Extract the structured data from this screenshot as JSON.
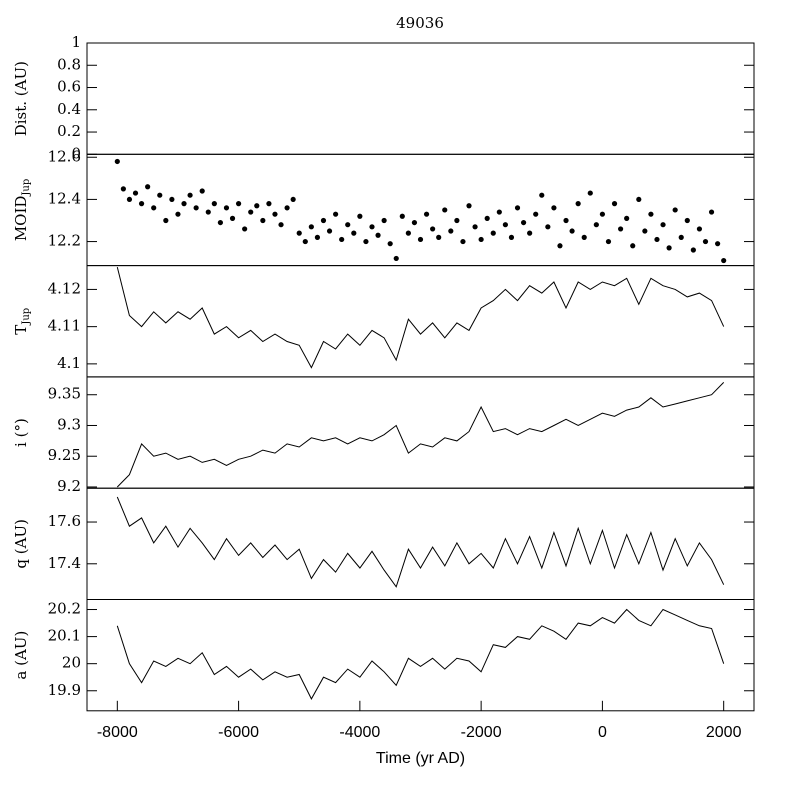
{
  "chart_data": [
    {
      "type": "line",
      "title": "49036",
      "ylabel": "Dist. (AU)",
      "xlim": [
        -8500,
        2500
      ],
      "ylim": [
        0,
        1
      ],
      "yticks": [
        0,
        0.2,
        0.4,
        0.6,
        0.8,
        1
      ]
    },
    {
      "type": "scatter",
      "ylabel": "MOID",
      "ylabel_sub": "Jup",
      "color": "#000000",
      "xlim": [
        -8500,
        2500
      ],
      "ylim": [
        12.086,
        12.614
      ],
      "yticks": [
        12.2,
        12.4,
        12.6
      ],
      "x": [
        -8000,
        -7900,
        -7800,
        -7700,
        -7600,
        -7500,
        -7400,
        -7300,
        -7200,
        -7100,
        -7000,
        -6900,
        -6800,
        -6700,
        -6600,
        -6500,
        -6400,
        -6300,
        -6200,
        -6100,
        -6000,
        -5900,
        -5800,
        -5700,
        -5600,
        -5500,
        -5400,
        -5300,
        -5200,
        -5100,
        -5000,
        -4900,
        -4800,
        -4700,
        -4600,
        -4500,
        -4400,
        -4300,
        -4200,
        -4100,
        -4000,
        -3900,
        -3800,
        -3700,
        -3600,
        -3500,
        -3400,
        -3300,
        -3200,
        -3100,
        -3000,
        -2900,
        -2800,
        -2700,
        -2600,
        -2500,
        -2400,
        -2300,
        -2200,
        -2100,
        -2000,
        -1900,
        -1800,
        -1700,
        -1600,
        -1500,
        -1400,
        -1300,
        -1200,
        -1100,
        -1000,
        -900,
        -800,
        -700,
        -600,
        -500,
        -400,
        -300,
        -200,
        -100,
        0,
        100,
        200,
        300,
        400,
        500,
        600,
        700,
        800,
        900,
        1000,
        1100,
        1200,
        1300,
        1400,
        1500,
        1600,
        1700,
        1800,
        1900,
        2000
      ],
      "values": [
        12.58,
        12.45,
        12.4,
        12.43,
        12.38,
        12.46,
        12.36,
        12.42,
        12.3,
        12.4,
        12.33,
        12.38,
        12.42,
        12.36,
        12.44,
        12.34,
        12.38,
        12.29,
        12.36,
        12.31,
        12.38,
        12.26,
        12.34,
        12.37,
        12.3,
        12.38,
        12.33,
        12.28,
        12.36,
        12.4,
        12.24,
        12.2,
        12.27,
        12.22,
        12.3,
        12.25,
        12.33,
        12.21,
        12.28,
        12.24,
        12.32,
        12.2,
        12.27,
        12.23,
        12.3,
        12.19,
        12.12,
        12.32,
        12.24,
        12.29,
        12.21,
        12.33,
        12.26,
        12.22,
        12.35,
        12.25,
        12.3,
        12.2,
        12.37,
        12.27,
        12.21,
        12.31,
        12.24,
        12.34,
        12.28,
        12.22,
        12.36,
        12.29,
        12.24,
        12.33,
        12.42,
        12.27,
        12.36,
        12.18,
        12.3,
        12.25,
        12.38,
        12.22,
        12.43,
        12.28,
        12.33,
        12.2,
        12.38,
        12.26,
        12.31,
        12.18,
        12.4,
        12.25,
        12.33,
        12.21,
        12.28,
        12.17,
        12.35,
        12.22,
        12.3,
        12.16,
        12.26,
        12.2,
        12.34,
        12.19,
        12.11
      ]
    },
    {
      "type": "line",
      "ylabel": "T",
      "ylabel_sub": "Jup",
      "color": "#000000",
      "xlim": [
        -8500,
        2500
      ],
      "ylim": [
        4.0965,
        4.1264
      ],
      "yticks": [
        4.1,
        4.11,
        4.12
      ],
      "x": [
        -8000,
        -7800,
        -7600,
        -7400,
        -7200,
        -7000,
        -6800,
        -6600,
        -6400,
        -6200,
        -6000,
        -5800,
        -5600,
        -5400,
        -5200,
        -5000,
        -4800,
        -4600,
        -4400,
        -4200,
        -4000,
        -3800,
        -3600,
        -3400,
        -3200,
        -3000,
        -2800,
        -2600,
        -2400,
        -2200,
        -2000,
        -1800,
        -1600,
        -1400,
        -1200,
        -1000,
        -800,
        -600,
        -400,
        -200,
        0,
        200,
        400,
        600,
        800,
        1000,
        1200,
        1400,
        1600,
        1800,
        2000
      ],
      "values": [
        4.126,
        4.113,
        4.11,
        4.114,
        4.111,
        4.114,
        4.112,
        4.115,
        4.108,
        4.11,
        4.107,
        4.109,
        4.106,
        4.108,
        4.106,
        4.105,
        4.099,
        4.106,
        4.104,
        4.108,
        4.105,
        4.109,
        4.107,
        4.101,
        4.112,
        4.108,
        4.111,
        4.107,
        4.111,
        4.109,
        4.115,
        4.117,
        4.12,
        4.117,
        4.121,
        4.119,
        4.122,
        4.115,
        4.122,
        4.12,
        4.122,
        4.121,
        4.123,
        4.116,
        4.123,
        4.121,
        4.12,
        4.118,
        4.119,
        4.117,
        4.11
      ]
    },
    {
      "type": "line",
      "ylabel": "i (°)",
      "color": "#000000",
      "xlim": [
        -8500,
        2500
      ],
      "ylim": [
        9.198,
        9.379
      ],
      "yticks": [
        9.2,
        9.25,
        9.3,
        9.35
      ],
      "x": [
        -8000,
        -7800,
        -7600,
        -7400,
        -7200,
        -7000,
        -6800,
        -6600,
        -6400,
        -6200,
        -6000,
        -5800,
        -5600,
        -5400,
        -5200,
        -5000,
        -4800,
        -4600,
        -4400,
        -4200,
        -4000,
        -3800,
        -3600,
        -3400,
        -3200,
        -3000,
        -2800,
        -2600,
        -2400,
        -2200,
        -2000,
        -1800,
        -1600,
        -1400,
        -1200,
        -1000,
        -800,
        -600,
        -400,
        -200,
        0,
        200,
        400,
        600,
        800,
        1000,
        1200,
        1400,
        1600,
        1800,
        2000
      ],
      "values": [
        9.2,
        9.22,
        9.27,
        9.25,
        9.255,
        9.245,
        9.25,
        9.24,
        9.245,
        9.235,
        9.245,
        9.25,
        9.26,
        9.255,
        9.27,
        9.265,
        9.28,
        9.275,
        9.28,
        9.27,
        9.28,
        9.275,
        9.285,
        9.3,
        9.255,
        9.27,
        9.265,
        9.28,
        9.275,
        9.29,
        9.33,
        9.29,
        9.295,
        9.285,
        9.295,
        9.29,
        9.3,
        9.31,
        9.3,
        9.31,
        9.32,
        9.315,
        9.325,
        9.33,
        9.345,
        9.33,
        9.335,
        9.34,
        9.345,
        9.35,
        9.37
      ]
    },
    {
      "type": "line",
      "ylabel": "q (AU)",
      "color": "#000000",
      "xlim": [
        -8500,
        2500
      ],
      "ylim": [
        17.229,
        17.762
      ],
      "yticks": [
        17.4,
        17.6
      ],
      "x": [
        -8000,
        -7800,
        -7600,
        -7400,
        -7200,
        -7000,
        -6800,
        -6600,
        -6400,
        -6200,
        -6000,
        -5800,
        -5600,
        -5400,
        -5200,
        -5000,
        -4800,
        -4600,
        -4400,
        -4200,
        -4000,
        -3800,
        -3600,
        -3400,
        -3200,
        -3000,
        -2800,
        -2600,
        -2400,
        -2200,
        -2000,
        -1800,
        -1600,
        -1400,
        -1200,
        -1000,
        -800,
        -600,
        -400,
        -200,
        0,
        200,
        400,
        600,
        800,
        1000,
        1200,
        1400,
        1600,
        1800,
        2000
      ],
      "values": [
        17.72,
        17.58,
        17.62,
        17.5,
        17.58,
        17.48,
        17.57,
        17.5,
        17.42,
        17.52,
        17.44,
        17.5,
        17.43,
        17.49,
        17.42,
        17.47,
        17.33,
        17.42,
        17.36,
        17.45,
        17.38,
        17.46,
        17.37,
        17.29,
        17.47,
        17.38,
        17.48,
        17.39,
        17.5,
        17.4,
        17.45,
        17.38,
        17.52,
        17.4,
        17.53,
        17.38,
        17.55,
        17.39,
        17.57,
        17.4,
        17.56,
        17.38,
        17.54,
        17.4,
        17.55,
        17.37,
        17.52,
        17.39,
        17.5,
        17.42,
        17.3
      ]
    },
    {
      "type": "line",
      "ylabel": "a (AU)",
      "xlabel": "Time (yr AD)",
      "color": "#000000",
      "xlim": [
        -8500,
        2500
      ],
      "ylim": [
        19.826,
        20.237
      ],
      "yticks": [
        19.9,
        20,
        20.1,
        20.2
      ],
      "xticks": [
        -8000,
        -6000,
        -4000,
        -2000,
        0,
        2000
      ],
      "x": [
        -8000,
        -7800,
        -7600,
        -7400,
        -7200,
        -7000,
        -6800,
        -6600,
        -6400,
        -6200,
        -6000,
        -5800,
        -5600,
        -5400,
        -5200,
        -5000,
        -4800,
        -4600,
        -4400,
        -4200,
        -4000,
        -3800,
        -3600,
        -3400,
        -3200,
        -3000,
        -2800,
        -2600,
        -2400,
        -2200,
        -2000,
        -1800,
        -1600,
        -1400,
        -1200,
        -1000,
        -800,
        -600,
        -400,
        -200,
        0,
        200,
        400,
        600,
        800,
        1000,
        1200,
        1400,
        1600,
        1800,
        2000
      ],
      "values": [
        20.14,
        20.0,
        19.93,
        20.01,
        19.99,
        20.02,
        20.0,
        20.04,
        19.96,
        19.99,
        19.95,
        19.98,
        19.94,
        19.97,
        19.95,
        19.96,
        19.87,
        19.95,
        19.93,
        19.98,
        19.95,
        20.01,
        19.97,
        19.92,
        20.02,
        19.99,
        20.02,
        19.98,
        20.02,
        20.01,
        19.97,
        20.07,
        20.06,
        20.1,
        20.09,
        20.14,
        20.12,
        20.09,
        20.15,
        20.14,
        20.17,
        20.15,
        20.2,
        20.16,
        20.14,
        20.2,
        20.18,
        20.16,
        20.14,
        20.13,
        20.0
      ]
    }
  ]
}
